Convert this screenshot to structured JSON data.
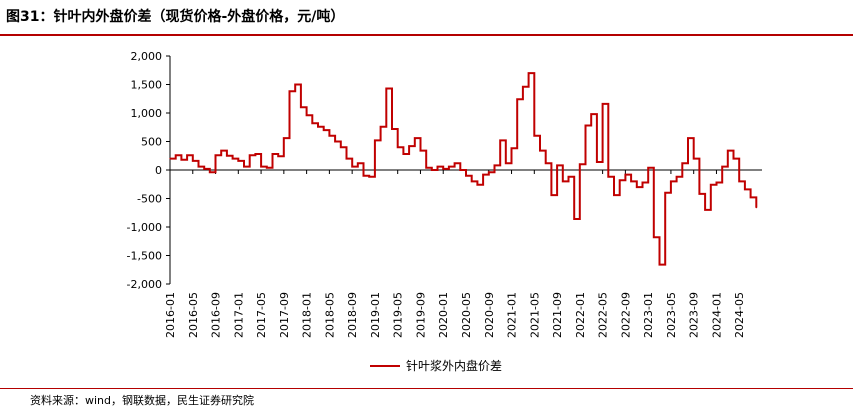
{
  "figure": {
    "title": "图31：针叶内外盘价差（现货价格-外盘价格，元/吨）",
    "source": "资料来源：wind，钢联数据，民生证券研究院"
  },
  "colors": {
    "series": "#c00000",
    "axis": "#000000",
    "rule": "#b40000"
  },
  "chart_data": {
    "type": "line",
    "title": "",
    "xlabel": "",
    "ylabel": "",
    "ylim": [
      -2000,
      2000
    ],
    "yticks": [
      -2000,
      -1500,
      -1000,
      -500,
      0,
      500,
      1000,
      1500,
      2000
    ],
    "ytick_labels": [
      "-2,000",
      "-1,500",
      "-1,000",
      "-500",
      "0",
      "500",
      "1,000",
      "1,500",
      "2,000"
    ],
    "xtick_labels": [
      "2016-01",
      "2016-05",
      "2016-09",
      "2017-01",
      "2017-05",
      "2017-09",
      "2018-01",
      "2018-05",
      "2018-09",
      "2019-01",
      "2019-05",
      "2019-09",
      "2020-01",
      "2020-05",
      "2020-09",
      "2021-01",
      "2021-05",
      "2021-09",
      "2022-01",
      "2022-05",
      "2022-09",
      "2023-01",
      "2023-05",
      "2023-09",
      "2024-01",
      "2024-05"
    ],
    "grid": false,
    "legend_position": "bottom-center",
    "series": [
      {
        "name": "针叶浆外内盘价差",
        "color": "#c00000",
        "points": [
          [
            "2016-01",
            200
          ],
          [
            "2016-02",
            260
          ],
          [
            "2016-03",
            180
          ],
          [
            "2016-04",
            260
          ],
          [
            "2016-05",
            160
          ],
          [
            "2016-06",
            60
          ],
          [
            "2016-07",
            20
          ],
          [
            "2016-08",
            -40
          ],
          [
            "2016-09",
            260
          ],
          [
            "2016-10",
            340
          ],
          [
            "2016-11",
            250
          ],
          [
            "2016-12",
            200
          ],
          [
            "2017-01",
            160
          ],
          [
            "2017-02",
            60
          ],
          [
            "2017-03",
            260
          ],
          [
            "2017-04",
            280
          ],
          [
            "2017-05",
            60
          ],
          [
            "2017-06",
            40
          ],
          [
            "2017-07",
            280
          ],
          [
            "2017-08",
            240
          ],
          [
            "2017-09",
            560
          ],
          [
            "2017-10",
            1380
          ],
          [
            "2017-11",
            1500
          ],
          [
            "2017-12",
            1100
          ],
          [
            "2018-01",
            960
          ],
          [
            "2018-02",
            820
          ],
          [
            "2018-03",
            760
          ],
          [
            "2018-04",
            700
          ],
          [
            "2018-05",
            600
          ],
          [
            "2018-06",
            500
          ],
          [
            "2018-07",
            400
          ],
          [
            "2018-08",
            200
          ],
          [
            "2018-09",
            60
          ],
          [
            "2018-10",
            120
          ],
          [
            "2018-11",
            -100
          ],
          [
            "2018-12",
            -120
          ],
          [
            "2019-01",
            520
          ],
          [
            "2019-02",
            760
          ],
          [
            "2019-03",
            1430
          ],
          [
            "2019-04",
            720
          ],
          [
            "2019-05",
            400
          ],
          [
            "2019-06",
            280
          ],
          [
            "2019-07",
            420
          ],
          [
            "2019-08",
            560
          ],
          [
            "2019-09",
            340
          ],
          [
            "2019-10",
            40
          ],
          [
            "2019-11",
            0
          ],
          [
            "2019-12",
            60
          ],
          [
            "2020-01",
            20
          ],
          [
            "2020-02",
            60
          ],
          [
            "2020-03",
            120
          ],
          [
            "2020-04",
            0
          ],
          [
            "2020-05",
            -100
          ],
          [
            "2020-06",
            -200
          ],
          [
            "2020-07",
            -260
          ],
          [
            "2020-08",
            -80
          ],
          [
            "2020-09",
            -40
          ],
          [
            "2020-10",
            80
          ],
          [
            "2020-11",
            520
          ],
          [
            "2020-12",
            120
          ],
          [
            "2021-01",
            380
          ],
          [
            "2021-02",
            1240
          ],
          [
            "2021-03",
            1460
          ],
          [
            "2021-04",
            1700
          ],
          [
            "2021-05",
            600
          ],
          [
            "2021-06",
            340
          ],
          [
            "2021-07",
            120
          ],
          [
            "2021-08",
            -440
          ],
          [
            "2021-09",
            80
          ],
          [
            "2021-10",
            -200
          ],
          [
            "2021-11",
            -120
          ],
          [
            "2021-12",
            -860
          ],
          [
            "2022-01",
            100
          ],
          [
            "2022-02",
            780
          ],
          [
            "2022-03",
            980
          ],
          [
            "2022-04",
            140
          ],
          [
            "2022-05",
            1160
          ],
          [
            "2022-06",
            -120
          ],
          [
            "2022-07",
            -440
          ],
          [
            "2022-08",
            -180
          ],
          [
            "2022-09",
            -80
          ],
          [
            "2022-10",
            -200
          ],
          [
            "2022-11",
            -300
          ],
          [
            "2022-12",
            -220
          ],
          [
            "2023-01",
            40
          ],
          [
            "2023-02",
            -1180
          ],
          [
            "2023-03",
            -1660
          ],
          [
            "2023-04",
            -400
          ],
          [
            "2023-05",
            -200
          ],
          [
            "2023-06",
            -120
          ],
          [
            "2023-07",
            120
          ],
          [
            "2023-08",
            560
          ],
          [
            "2023-09",
            200
          ],
          [
            "2023-10",
            -420
          ],
          [
            "2023-11",
            -700
          ],
          [
            "2023-12",
            -260
          ],
          [
            "2024-01",
            -220
          ],
          [
            "2024-02",
            60
          ],
          [
            "2024-03",
            340
          ],
          [
            "2024-04",
            200
          ],
          [
            "2024-05",
            -200
          ],
          [
            "2024-06",
            -340
          ],
          [
            "2024-07",
            -480
          ],
          [
            "2024-08",
            -660
          ]
        ]
      }
    ]
  }
}
